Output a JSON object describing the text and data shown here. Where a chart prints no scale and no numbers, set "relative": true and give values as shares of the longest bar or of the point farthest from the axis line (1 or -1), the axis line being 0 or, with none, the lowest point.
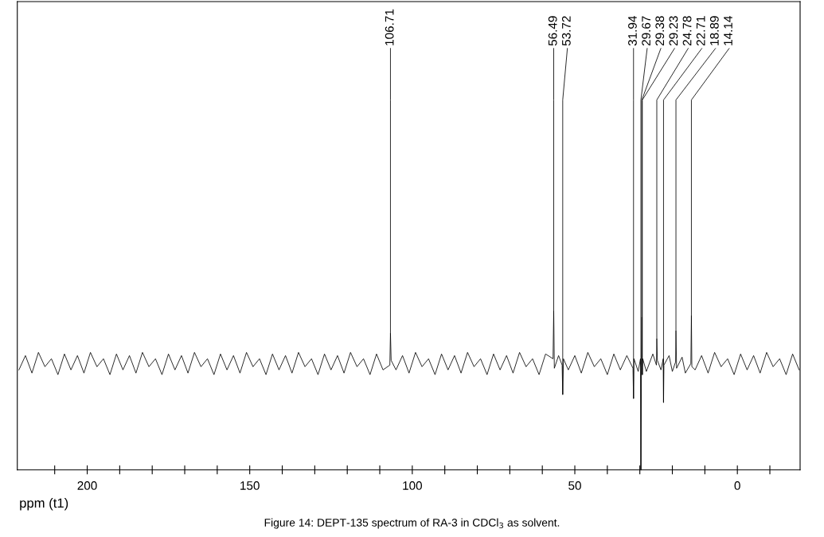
{
  "chart_data": {
    "type": "line",
    "relative": true,
    "xlabel": "ppm (t1)",
    "xlim": [
      221.5,
      -19.3
    ],
    "xticks": [
      {
        "value": 210,
        "label": null
      },
      200,
      {
        "value": 190,
        "label": null
      },
      {
        "value": 180,
        "label": null
      },
      {
        "value": 170,
        "label": null
      },
      {
        "value": 160,
        "label": null
      },
      150,
      {
        "value": 140,
        "label": null
      },
      {
        "value": 130,
        "label": null
      },
      {
        "value": 120,
        "label": null
      },
      {
        "value": 110,
        "label": null
      },
      100,
      {
        "value": 90,
        "label": null
      },
      {
        "value": 80,
        "label": null
      },
      {
        "value": 70,
        "label": null
      },
      {
        "value": 60,
        "label": null
      },
      50,
      {
        "value": 40,
        "label": null
      },
      {
        "value": 30,
        "label": null
      },
      {
        "value": 20,
        "label": null
      },
      {
        "value": 10,
        "label": null
      },
      0,
      {
        "value": -10,
        "label": null
      }
    ],
    "tick_labels": "x",
    "grid": false,
    "marker": "none",
    "line_style": "solid",
    "series": [
      {
        "color": "#000000",
        "x": [
          221,
          219,
          217,
          215,
          213,
          211,
          209,
          207,
          205,
          203,
          201,
          199,
          197,
          195,
          193,
          191,
          189,
          187,
          185,
          183,
          181,
          179,
          177,
          175,
          173,
          171,
          169,
          167,
          165,
          163,
          161,
          159,
          157,
          155,
          153,
          151,
          149,
          147,
          145,
          143,
          141,
          139,
          137,
          135,
          133,
          131,
          129,
          127,
          125,
          123,
          121,
          119,
          117,
          115,
          113,
          111,
          109,
          106.9,
          106.71,
          106.5,
          105,
          103,
          101,
          99,
          97,
          95,
          93,
          91,
          89,
          87,
          85,
          83,
          81,
          79,
          77,
          75,
          73,
          71,
          69,
          67,
          65,
          63,
          61,
          59,
          56.7,
          56.49,
          56.3,
          55,
          53.9,
          53.72,
          53.5,
          52,
          50,
          48,
          46,
          44,
          42,
          40,
          38,
          36,
          34,
          32.1,
          31.94,
          31.8,
          30.5,
          29.8,
          29.67,
          29.5,
          29.38,
          29.3,
          29.23,
          29.1,
          28,
          26,
          24.9,
          24.78,
          24.6,
          23.5,
          22.8,
          22.71,
          22.6,
          21,
          20,
          19.0,
          18.89,
          18.7,
          17,
          16,
          14.3,
          14.14,
          14.0,
          13,
          11,
          9,
          7,
          5,
          3,
          1,
          -1,
          -3,
          -5,
          -7,
          -9,
          -11,
          -13,
          -15,
          -17,
          -19
        ],
        "values": [
          0.63,
          0.72,
          0.61,
          0.74,
          0.65,
          0.7,
          0.6,
          0.73,
          0.63,
          0.72,
          0.61,
          0.74,
          0.65,
          0.7,
          0.6,
          0.73,
          0.63,
          0.72,
          0.61,
          0.74,
          0.65,
          0.7,
          0.6,
          0.73,
          0.63,
          0.72,
          0.61,
          0.74,
          0.65,
          0.7,
          0.6,
          0.73,
          0.63,
          0.72,
          0.61,
          0.74,
          0.65,
          0.7,
          0.6,
          0.73,
          0.63,
          0.72,
          0.61,
          0.74,
          0.65,
          0.7,
          0.6,
          0.73,
          0.63,
          0.72,
          0.61,
          0.74,
          0.65,
          0.7,
          0.6,
          0.73,
          0.63,
          0.66,
          0.86,
          0.69,
          0.63,
          0.72,
          0.61,
          0.74,
          0.65,
          0.7,
          0.6,
          0.73,
          0.63,
          0.72,
          0.61,
          0.74,
          0.65,
          0.7,
          0.6,
          0.73,
          0.63,
          0.72,
          0.61,
          0.74,
          0.65,
          0.7,
          0.6,
          0.73,
          0.7,
          1.0,
          0.64,
          0.72,
          0.66,
          0.475,
          0.7,
          0.63,
          0.72,
          0.61,
          0.74,
          0.65,
          0.7,
          0.6,
          0.73,
          0.63,
          0.72,
          0.64,
          0.45,
          0.7,
          0.62,
          0.7,
          0.0,
          0.66,
          0.96,
          0.65,
          0.6,
          0.7,
          0.62,
          0.73,
          0.66,
          0.825,
          0.69,
          0.63,
          0.7,
          0.425,
          0.66,
          0.72,
          0.62,
          0.68,
          0.875,
          0.64,
          0.71,
          0.61,
          0.67,
          0.97,
          0.65,
          0.63,
          0.72,
          0.61,
          0.74,
          0.65,
          0.7,
          0.6,
          0.73,
          0.63,
          0.72,
          0.61,
          0.74,
          0.65,
          0.7,
          0.6,
          0.73,
          0.63
        ]
      }
    ],
    "annotations": [
      {
        "text": "106.71",
        "x": 106.71,
        "y": 0.86
      },
      {
        "text": "56.49",
        "x": 56.49,
        "y": 1.0
      },
      {
        "text": "53.72",
        "x": 53.72,
        "y": 0.475
      },
      {
        "text": "31.94",
        "x": 31.94,
        "y": 0.45
      },
      {
        "text": "29.67",
        "x": 29.67,
        "y": 0.0
      },
      {
        "text": "29.38",
        "x": 29.38,
        "y": 0.96
      },
      {
        "text": "29.23",
        "x": 29.23,
        "y": 0.6
      },
      {
        "text": "24.78",
        "x": 24.78,
        "y": 0.825
      },
      {
        "text": "22.71",
        "x": 22.71,
        "y": 0.425
      },
      {
        "text": "18.89",
        "x": 18.89,
        "y": 0.875
      },
      {
        "text": "14.14",
        "x": 14.14,
        "y": 0.97
      },
      "Figure 14: DEPT-135 spectrum of RA-3 in CDCl$_{3}$ as solvent."
    ]
  }
}
